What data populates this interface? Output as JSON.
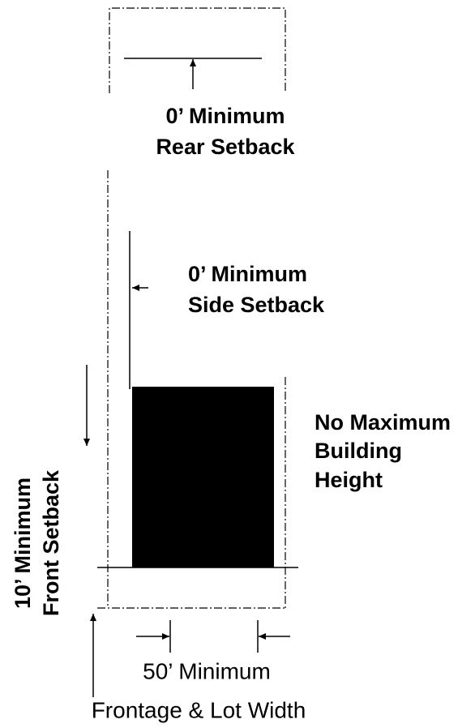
{
  "rear_setback": {
    "line1": "0’ Minimum",
    "line2": "Rear Setback"
  },
  "side_setback": {
    "line1": "0’ Minimum",
    "line2": "Side Setback"
  },
  "height": {
    "line1": "No Maximum",
    "line2": "Building",
    "line3": "Height"
  },
  "front_setback": {
    "line1": "10’ Minimum",
    "line2": "Front Setback"
  },
  "frontage": {
    "line1": "50’ Minimum",
    "line2": "Frontage & Lot Width"
  }
}
